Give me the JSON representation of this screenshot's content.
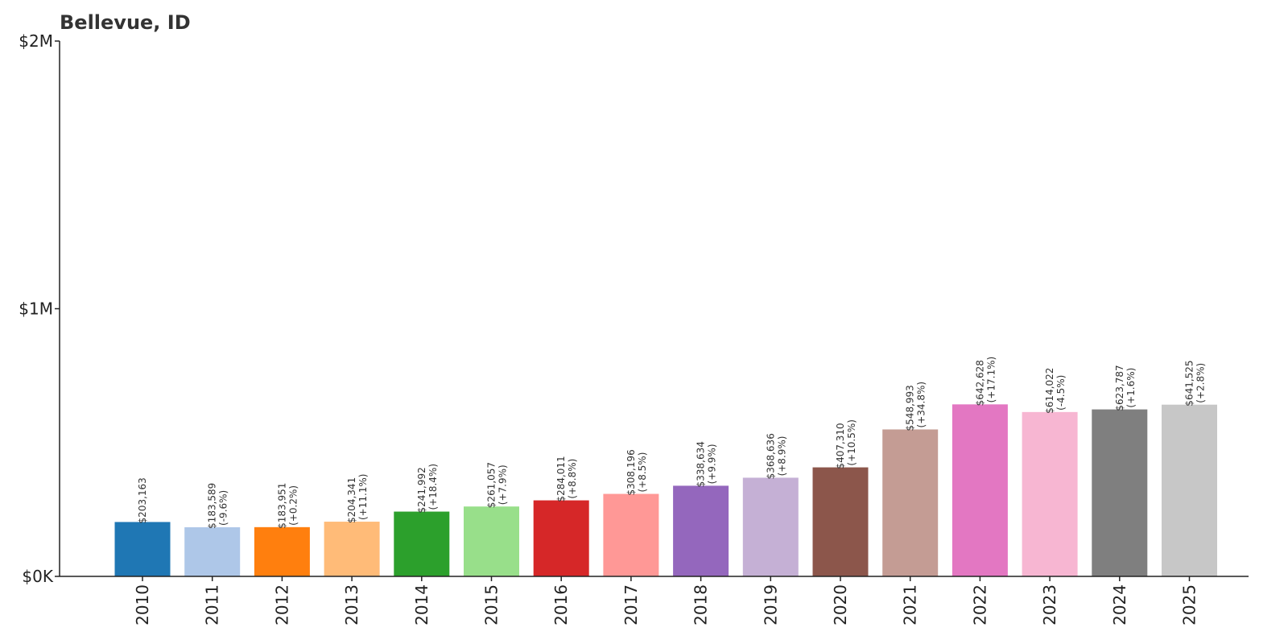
{
  "chart_data": {
    "type": "bar",
    "title": "Bellevue, ID",
    "xlabel": "",
    "ylabel": "",
    "ylim": [
      0,
      2000000
    ],
    "yticks": [
      {
        "value": 0,
        "label": "$0K"
      },
      {
        "value": 1000000,
        "label": "$1M"
      },
      {
        "value": 2000000,
        "label": "$2M"
      }
    ],
    "categories": [
      "2010",
      "2011",
      "2012",
      "2013",
      "2014",
      "2015",
      "2016",
      "2017",
      "2018",
      "2019",
      "2020",
      "2021",
      "2022",
      "2023",
      "2024",
      "2025"
    ],
    "values": [
      203163,
      183589,
      183951,
      204341,
      241992,
      261057,
      284011,
      308196,
      338634,
      368636,
      407310,
      548993,
      642628,
      614022,
      623787,
      641525
    ],
    "value_labels": [
      "$203,163",
      "$183,589",
      "$183,951",
      "$204,341",
      "$241,992",
      "$261,057",
      "$284,011",
      "$308,196",
      "$338,634",
      "$368,636",
      "$407,310",
      "$548,993",
      "$642,628",
      "$614,022",
      "$623,787",
      "$641,525"
    ],
    "change_labels": [
      "",
      "(-9.6%)",
      "(+0.2%)",
      "(+11.1%)",
      "(+18.4%)",
      "(+7.9%)",
      "(+8.8%)",
      "(+8.5%)",
      "(+9.9%)",
      "(+8.9%)",
      "(+10.5%)",
      "(+34.8%)",
      "(+17.1%)",
      "(-4.5%)",
      "(+1.6%)",
      "(+2.8%)"
    ],
    "colors": [
      "#1f77b4",
      "#aec7e8",
      "#ff7f0e",
      "#ffbb78",
      "#2ca02c",
      "#98df8a",
      "#d62728",
      "#ff9896",
      "#9467bd",
      "#c5b0d5",
      "#8c564b",
      "#c49c94",
      "#e377c2",
      "#f7b6d2",
      "#7f7f7f",
      "#c7c7c7"
    ],
    "grid": false,
    "legend": "none"
  }
}
